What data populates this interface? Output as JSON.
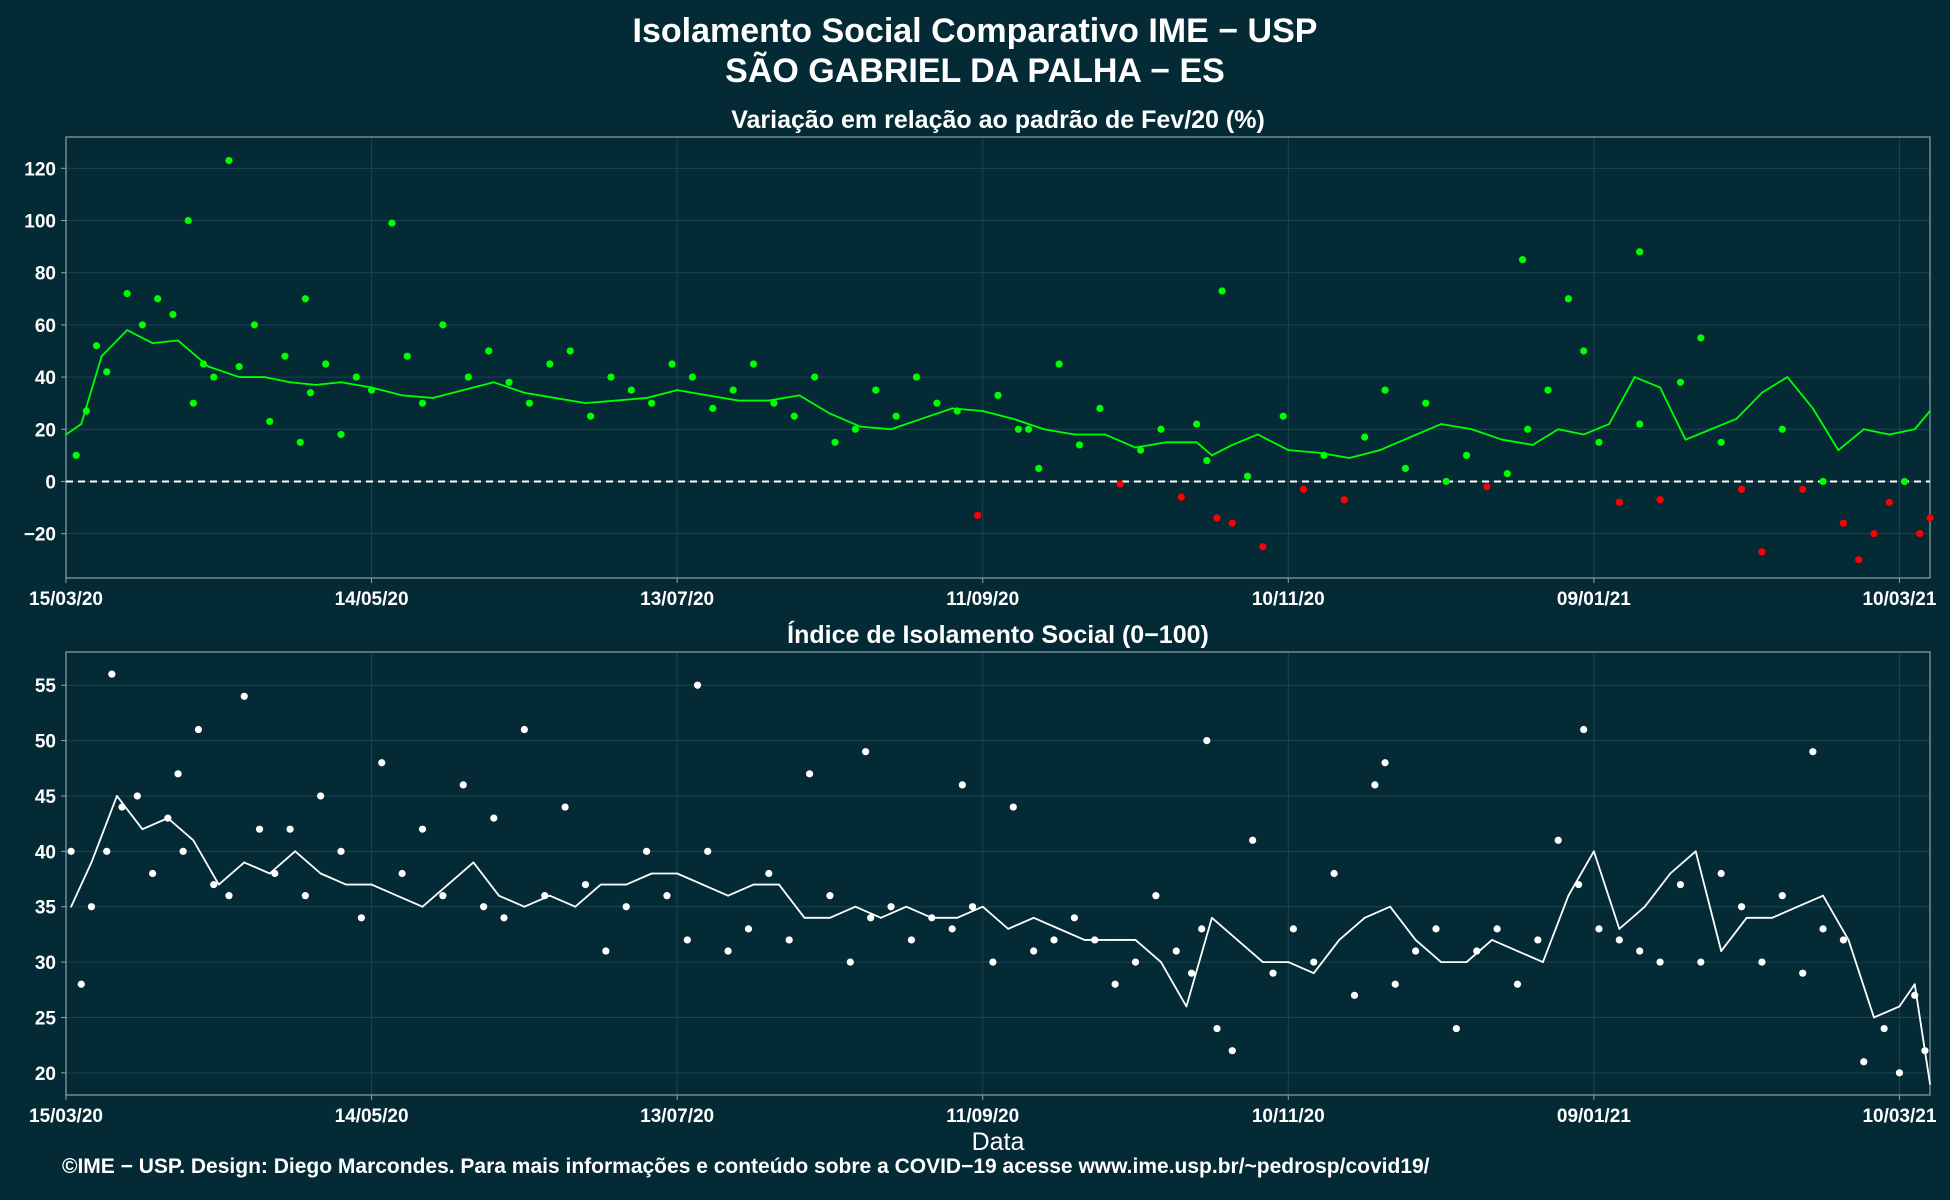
{
  "header": {
    "title_line1": "Isolamento Social Comparativo IME − USP",
    "title_line2": "SÃO GABRIEL DA PALHA − ES"
  },
  "footer": {
    "credits": "©IME − USP. Design: Diego Marcondes. Para mais informações e conteúdo sobre a COVID−19 acesse www.ime.usp.br/~pedrosp/covid19/"
  },
  "colors": {
    "background": "#042a35",
    "grid": "#1a4450",
    "axis": "#8fa3a8",
    "text": "#ffffff",
    "positive": "#00ff00",
    "negative": "#ff0000",
    "index_points": "#ffffff"
  },
  "chart_data": [
    {
      "type": "scatter",
      "title": "Variação em relação ao padrão de Fev/20 (%)",
      "xlabel": "",
      "ylabel": "",
      "x_range": [
        "2020-03-15",
        "2021-03-16"
      ],
      "ylim": [
        -37,
        132
      ],
      "y_ticks": [
        -20,
        0,
        20,
        40,
        60,
        80,
        100,
        120
      ],
      "x_ticks": [
        {
          "date": "2020-03-15",
          "label": "15/03/20"
        },
        {
          "date": "2020-05-14",
          "label": "14/05/20"
        },
        {
          "date": "2020-07-13",
          "label": "13/07/20"
        },
        {
          "date": "2020-09-11",
          "label": "11/09/20"
        },
        {
          "date": "2020-11-10",
          "label": "10/11/20"
        },
        {
          "date": "2021-01-09",
          "label": "09/01/21"
        },
        {
          "date": "2021-03-10",
          "label": "10/03/21"
        }
      ],
      "reference_line": {
        "y": 0,
        "style": "dashed"
      },
      "point_color_rule": "green when value >= 0, red when value < 0",
      "trend_series": {
        "name": "",
        "x": [
          "2020-03-15",
          "2020-03-18",
          "2020-03-22",
          "2020-03-27",
          "2020-04-01",
          "2020-04-06",
          "2020-04-12",
          "2020-04-18",
          "2020-04-23",
          "2020-04-28",
          "2020-05-03",
          "2020-05-08",
          "2020-05-14",
          "2020-05-20",
          "2020-05-26",
          "2020-06-01",
          "2020-06-07",
          "2020-06-13",
          "2020-06-19",
          "2020-06-25",
          "2020-07-01",
          "2020-07-07",
          "2020-07-13",
          "2020-07-19",
          "2020-07-25",
          "2020-07-31",
          "2020-08-06",
          "2020-08-12",
          "2020-08-18",
          "2020-08-24",
          "2020-08-30",
          "2020-09-05",
          "2020-09-11",
          "2020-09-17",
          "2020-09-23",
          "2020-09-29",
          "2020-10-05",
          "2020-10-11",
          "2020-10-17",
          "2020-10-23",
          "2020-10-26",
          "2020-10-30",
          "2020-11-04",
          "2020-11-10",
          "2020-11-16",
          "2020-11-22",
          "2020-11-28",
          "2020-12-04",
          "2020-12-10",
          "2020-12-16",
          "2020-12-22",
          "2020-12-28",
          "2021-01-02",
          "2021-01-07",
          "2021-01-12",
          "2021-01-17",
          "2021-01-22",
          "2021-01-27",
          "2021-02-01",
          "2021-02-06",
          "2021-02-11",
          "2021-02-16",
          "2021-02-21",
          "2021-02-26",
          "2021-03-03",
          "2021-03-08",
          "2021-03-13",
          "2021-03-16"
        ],
        "values": [
          18,
          22,
          48,
          58,
          53,
          54,
          44,
          40,
          40,
          38,
          37,
          38,
          36,
          33,
          32,
          35,
          38,
          34,
          32,
          30,
          31,
          32,
          35,
          33,
          31,
          31,
          33,
          26,
          21,
          20,
          24,
          28,
          27,
          24,
          20,
          18,
          18,
          13,
          15,
          15,
          10,
          14,
          18,
          12,
          11,
          9,
          12,
          17,
          22,
          20,
          16,
          14,
          20,
          18,
          22,
          40,
          36,
          16,
          20,
          24,
          34,
          40,
          28,
          12,
          20,
          18,
          20,
          27
        ]
      },
      "points": {
        "x": [
          "2020-03-17",
          "2020-03-19",
          "2020-03-21",
          "2020-03-23",
          "2020-03-27",
          "2020-03-30",
          "2020-04-02",
          "2020-04-05",
          "2020-04-09",
          "2020-04-11",
          "2020-04-13",
          "2020-04-16",
          "2020-04-18",
          "2020-04-21",
          "2020-04-24",
          "2020-04-27",
          "2020-04-30",
          "2020-05-02",
          "2020-05-05",
          "2020-05-08",
          "2020-05-11",
          "2020-05-14",
          "2020-05-18",
          "2020-05-21",
          "2020-05-24",
          "2020-05-28",
          "2020-06-02",
          "2020-06-06",
          "2020-06-10",
          "2020-06-14",
          "2020-06-18",
          "2020-06-22",
          "2020-06-26",
          "2020-06-30",
          "2020-07-04",
          "2020-07-08",
          "2020-07-12",
          "2020-07-16",
          "2020-07-20",
          "2020-07-24",
          "2020-07-28",
          "2020-08-01",
          "2020-08-05",
          "2020-08-09",
          "2020-08-13",
          "2020-08-17",
          "2020-08-21",
          "2020-08-25",
          "2020-08-29",
          "2020-09-02",
          "2020-09-06",
          "2020-09-10",
          "2020-09-14",
          "2020-09-18",
          "2020-09-22",
          "2020-09-26",
          "2020-09-30",
          "2020-10-04",
          "2020-10-08",
          "2020-10-12",
          "2020-10-16",
          "2020-10-20",
          "2020-10-23",
          "2020-10-25",
          "2020-10-27",
          "2020-10-30",
          "2020-11-02",
          "2020-11-05",
          "2020-11-09",
          "2020-11-13",
          "2020-11-17",
          "2020-11-21",
          "2020-11-25",
          "2020-11-29",
          "2020-12-03",
          "2020-12-07",
          "2020-12-11",
          "2020-12-15",
          "2020-12-19",
          "2020-12-23",
          "2020-12-27",
          "2020-12-31",
          "2021-01-04",
          "2021-01-07",
          "2021-01-10",
          "2021-01-14",
          "2021-01-18",
          "2021-01-22",
          "2021-01-26",
          "2021-01-30",
          "2021-02-03",
          "2021-02-07",
          "2021-02-11",
          "2021-02-15",
          "2021-02-19",
          "2021-02-23",
          "2021-02-27",
          "2021-03-02",
          "2021-03-05",
          "2021-03-08",
          "2021-03-11",
          "2021-03-14",
          "2021-03-16",
          "2020-04-08",
          "2020-05-01",
          "2020-09-20",
          "2020-10-28",
          "2020-12-26",
          "2021-01-18"
        ],
        "y": [
          10,
          27,
          52,
          42,
          72,
          60,
          70,
          64,
          30,
          45,
          40,
          123,
          44,
          60,
          23,
          48,
          15,
          34,
          45,
          18,
          40,
          35,
          99,
          48,
          30,
          60,
          40,
          50,
          38,
          30,
          45,
          50,
          25,
          40,
          35,
          30,
          45,
          40,
          28,
          35,
          45,
          30,
          25,
          40,
          15,
          20,
          35,
          25,
          40,
          30,
          27,
          -13,
          33,
          20,
          5,
          45,
          14,
          28,
          -1,
          12,
          20,
          -6,
          22,
          8,
          -14,
          -16,
          2,
          -25,
          25,
          -3,
          10,
          -7,
          17,
          35,
          5,
          30,
          0,
          10,
          -2,
          3,
          20,
          35,
          70,
          50,
          15,
          -8,
          22,
          -7,
          38,
          55,
          15,
          -3,
          -27,
          20,
          -3,
          0,
          -16,
          -30,
          -20,
          -8,
          0,
          -20,
          -14,
          100,
          70,
          20,
          73,
          85,
          88
        ]
      }
    },
    {
      "type": "scatter",
      "title": "Índice de Isolamento Social (0−100)",
      "xlabel": "Data",
      "ylabel": "",
      "x_range": [
        "2020-03-15",
        "2021-03-16"
      ],
      "ylim": [
        18,
        58
      ],
      "y_ticks": [
        20,
        25,
        30,
        35,
        40,
        45,
        50,
        55
      ],
      "x_ticks": [
        {
          "date": "2020-03-15",
          "label": "15/03/20"
        },
        {
          "date": "2020-05-14",
          "label": "14/05/20"
        },
        {
          "date": "2020-07-13",
          "label": "13/07/20"
        },
        {
          "date": "2020-09-11",
          "label": "11/09/20"
        },
        {
          "date": "2020-11-10",
          "label": "10/11/20"
        },
        {
          "date": "2021-01-09",
          "label": "09/01/21"
        },
        {
          "date": "2021-03-10",
          "label": "10/03/21"
        }
      ],
      "trend_series": {
        "name": "",
        "x": [
          "2020-03-16",
          "2020-03-20",
          "2020-03-25",
          "2020-03-30",
          "2020-04-04",
          "2020-04-09",
          "2020-04-14",
          "2020-04-19",
          "2020-04-24",
          "2020-04-29",
          "2020-05-04",
          "2020-05-09",
          "2020-05-14",
          "2020-05-19",
          "2020-05-24",
          "2020-05-29",
          "2020-06-03",
          "2020-06-08",
          "2020-06-13",
          "2020-06-18",
          "2020-06-23",
          "2020-06-28",
          "2020-07-03",
          "2020-07-08",
          "2020-07-13",
          "2020-07-18",
          "2020-07-23",
          "2020-07-28",
          "2020-08-02",
          "2020-08-07",
          "2020-08-12",
          "2020-08-17",
          "2020-08-22",
          "2020-08-27",
          "2020-09-01",
          "2020-09-06",
          "2020-09-11",
          "2020-09-16",
          "2020-09-21",
          "2020-09-26",
          "2020-10-01",
          "2020-10-06",
          "2020-10-11",
          "2020-10-16",
          "2020-10-21",
          "2020-10-26",
          "2020-10-31",
          "2020-11-05",
          "2020-11-10",
          "2020-11-15",
          "2020-11-20",
          "2020-11-25",
          "2020-11-30",
          "2020-12-05",
          "2020-12-10",
          "2020-12-15",
          "2020-12-20",
          "2020-12-25",
          "2020-12-30",
          "2021-01-04",
          "2021-01-09",
          "2021-01-14",
          "2021-01-19",
          "2021-01-24",
          "2021-01-29",
          "2021-02-03",
          "2021-02-08",
          "2021-02-13",
          "2021-02-18",
          "2021-02-23",
          "2021-02-28",
          "2021-03-05",
          "2021-03-10",
          "2021-03-13",
          "2021-03-16"
        ],
        "values": [
          35,
          39,
          45,
          42,
          43,
          41,
          37,
          39,
          38,
          40,
          38,
          37,
          37,
          36,
          35,
          37,
          39,
          36,
          35,
          36,
          35,
          37,
          37,
          38,
          38,
          37,
          36,
          37,
          37,
          34,
          34,
          35,
          34,
          35,
          34,
          34,
          35,
          33,
          34,
          33,
          32,
          32,
          32,
          30,
          26,
          34,
          32,
          30,
          30,
          29,
          32,
          34,
          35,
          32,
          30,
          30,
          32,
          31,
          30,
          36,
          40,
          33,
          35,
          38,
          40,
          31,
          34,
          34,
          35,
          36,
          32,
          25,
          26,
          28,
          19
        ]
      },
      "points": {
        "x": [
          "2020-03-16",
          "2020-03-18",
          "2020-03-20",
          "2020-03-23",
          "2020-03-26",
          "2020-03-29",
          "2020-04-01",
          "2020-04-04",
          "2020-04-07",
          "2020-04-10",
          "2020-04-13",
          "2020-04-16",
          "2020-04-19",
          "2020-04-22",
          "2020-04-25",
          "2020-04-28",
          "2020-05-01",
          "2020-05-04",
          "2020-05-08",
          "2020-05-12",
          "2020-05-16",
          "2020-05-20",
          "2020-05-24",
          "2020-05-28",
          "2020-06-01",
          "2020-06-05",
          "2020-06-09",
          "2020-06-13",
          "2020-06-17",
          "2020-06-21",
          "2020-06-25",
          "2020-06-29",
          "2020-07-03",
          "2020-07-07",
          "2020-07-11",
          "2020-07-15",
          "2020-07-19",
          "2020-07-23",
          "2020-07-27",
          "2020-07-31",
          "2020-08-04",
          "2020-08-08",
          "2020-08-12",
          "2020-08-16",
          "2020-08-20",
          "2020-08-24",
          "2020-08-28",
          "2020-09-01",
          "2020-09-05",
          "2020-09-09",
          "2020-09-13",
          "2020-09-17",
          "2020-09-21",
          "2020-09-25",
          "2020-09-29",
          "2020-10-03",
          "2020-10-07",
          "2020-10-11",
          "2020-10-15",
          "2020-10-19",
          "2020-10-22",
          "2020-10-24",
          "2020-10-27",
          "2020-10-30",
          "2020-11-03",
          "2020-11-07",
          "2020-11-11",
          "2020-11-15",
          "2020-11-19",
          "2020-11-23",
          "2020-11-27",
          "2020-12-01",
          "2020-12-05",
          "2020-12-09",
          "2020-12-13",
          "2020-12-17",
          "2020-12-21",
          "2020-12-25",
          "2020-12-29",
          "2021-01-02",
          "2021-01-06",
          "2021-01-10",
          "2021-01-14",
          "2021-01-18",
          "2021-01-22",
          "2021-01-26",
          "2021-01-30",
          "2021-02-03",
          "2021-02-07",
          "2021-02-11",
          "2021-02-15",
          "2021-02-19",
          "2021-02-23",
          "2021-02-27",
          "2021-03-03",
          "2021-03-07",
          "2021-03-10",
          "2021-03-13",
          "2021-03-15",
          "2020-03-24",
          "2020-04-06",
          "2020-06-07",
          "2020-07-17",
          "2020-08-19",
          "2020-09-07",
          "2020-10-25",
          "2020-11-29",
          "2021-01-07",
          "2021-02-21"
        ],
        "y": [
          40,
          28,
          35,
          40,
          44,
          45,
          38,
          43,
          40,
          51,
          37,
          36,
          54,
          42,
          38,
          42,
          36,
          45,
          40,
          34,
          48,
          38,
          42,
          36,
          46,
          35,
          34,
          51,
          36,
          44,
          37,
          31,
          35,
          40,
          36,
          32,
          40,
          31,
          33,
          38,
          32,
          47,
          36,
          30,
          34,
          35,
          32,
          34,
          33,
          35,
          30,
          44,
          31,
          32,
          34,
          32,
          28,
          30,
          36,
          31,
          29,
          33,
          24,
          22,
          41,
          29,
          33,
          30,
          38,
          27,
          46,
          28,
          31,
          33,
          24,
          31,
          33,
          28,
          32,
          41,
          37,
          33,
          32,
          31,
          30,
          37,
          30,
          38,
          35,
          30,
          36,
          29,
          33,
          32,
          21,
          24,
          20,
          27,
          22,
          56,
          47,
          43,
          55,
          49,
          46,
          50,
          48,
          51,
          49
        ]
      }
    }
  ]
}
